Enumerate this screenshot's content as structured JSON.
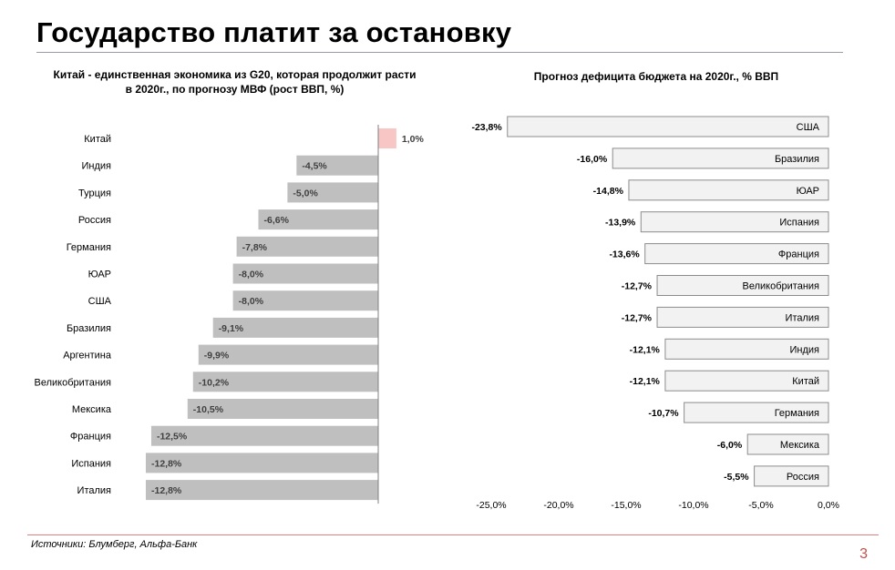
{
  "title": "Государство платит за остановку",
  "source": "Источники: Блумберг, Альфа-Банк",
  "page_number": "3",
  "colors": {
    "positive_bar": "#f9c6c6",
    "negative_bar": "#bfbfbf",
    "deficit_bar": "#f2f2f2",
    "deficit_border": "#8c8c8c",
    "footer_rule": "#e08080",
    "page_number": "#c0504d"
  },
  "chart_data": [
    {
      "type": "bar",
      "orientation": "horizontal",
      "title": "Китай - единственная экономика из G20, которая продолжит расти в 2020г., по прогнозу МВФ (рост ВВП, %)",
      "title_lines": [
        "Китай - единственная экономика из G20, которая продолжит расти",
        "в 2020г., по прогнозу МВФ (рост ВВП, %)"
      ],
      "categories": [
        "Китай",
        "Индия",
        "Турция",
        "Россия",
        "Германия",
        "ЮАР",
        "США",
        "Бразилия",
        "Аргентина",
        "Великобритания",
        "Мексика",
        "Франция",
        "Испания",
        "Италия"
      ],
      "values": [
        1.0,
        -4.5,
        -5.0,
        -6.6,
        -7.8,
        -8.0,
        -8.0,
        -9.1,
        -9.9,
        -10.2,
        -10.5,
        -12.5,
        -12.8,
        -12.8
      ],
      "labels": [
        "1,0%",
        "-4,5%",
        "-5,0%",
        "-6,6%",
        "-7,8%",
        "-8,0%",
        "-8,0%",
        "-9,1%",
        "-9,9%",
        "-10,2%",
        "-10,5%",
        "-12,5%",
        "-12,8%",
        "-12,8%"
      ],
      "xlim": [
        -13,
        1.2
      ],
      "grid": false,
      "legend": "none"
    },
    {
      "type": "bar",
      "orientation": "horizontal",
      "title": "Прогноз дефицита бюджета на 2020г., % ВВП",
      "categories": [
        "США",
        "Бразилия",
        "ЮАР",
        "Испания",
        "Франция",
        "Великобритания",
        "Италия",
        "Индия",
        "Китай",
        "Германия",
        "Мексика",
        "Россия"
      ],
      "values": [
        -23.8,
        -16.0,
        -14.8,
        -13.9,
        -13.6,
        -12.7,
        -12.7,
        -12.1,
        -12.1,
        -10.7,
        -6.0,
        -5.5
      ],
      "labels": [
        "-23,8%",
        "-16,0%",
        "-14,8%",
        "-13,9%",
        "-13,6%",
        "-12,7%",
        "-12,7%",
        "-12,1%",
        "-12,1%",
        "-10,7%",
        "-6,0%",
        "-5,5%"
      ],
      "xlim": [
        -25,
        0
      ],
      "xticks": [
        "-25,0%",
        "-20,0%",
        "-15,0%",
        "-10,0%",
        "-5,0%",
        "0,0%"
      ],
      "grid": false,
      "legend": "none"
    }
  ]
}
